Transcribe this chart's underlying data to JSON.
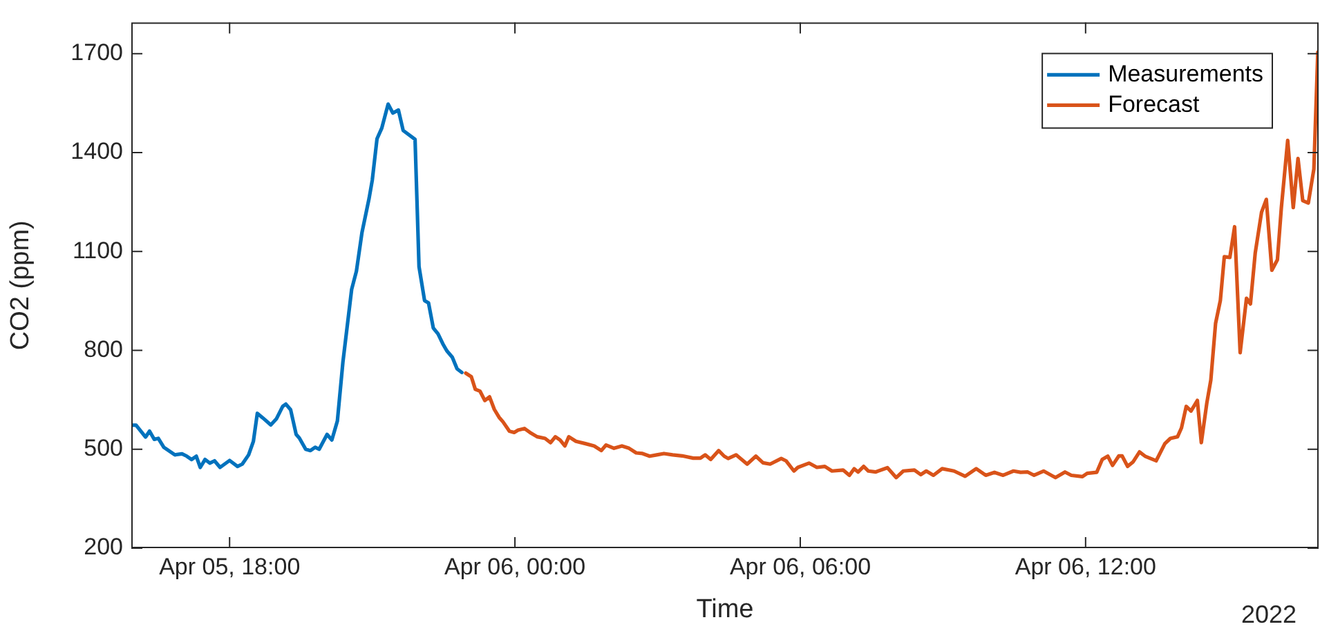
{
  "chart_data": {
    "type": "line",
    "xlabel": "Time",
    "ylabel": "CO2 (ppm)",
    "annotations": [
      "2022"
    ],
    "legend": "top right",
    "marker": "none",
    "line_style": "solid",
    "xlim": [
      "2022-04-05T15:56",
      "2022-04-06T16:54"
    ],
    "xticks": [
      {
        "value": "2022-04-05T18:00",
        "label": "Apr 05, 18:00"
      },
      {
        "value": "2022-04-06T00:00",
        "label": "Apr 06, 00:00"
      },
      {
        "value": "2022-04-06T06:00",
        "label": "Apr 06, 06:00"
      },
      {
        "value": "2022-04-06T12:00",
        "label": "Apr 06, 12:00"
      }
    ],
    "ylim": [
      200,
      1795
    ],
    "yticks": [
      200,
      500,
      800,
      1100,
      1400,
      1700
    ],
    "series": [
      {
        "name": "Measurements",
        "color": "#0072bd",
        "x": [
          "2022-04-05T15:56",
          "2022-04-05T16:02",
          "2022-04-05T16:14",
          "2022-04-05T16:19",
          "2022-04-05T16:25",
          "2022-04-05T16:30",
          "2022-04-05T16:37",
          "2022-04-05T16:51",
          "2022-04-05T17:00",
          "2022-04-05T17:06",
          "2022-04-05T17:12",
          "2022-04-05T17:18",
          "2022-04-05T17:23",
          "2022-04-05T17:29",
          "2022-04-05T17:35",
          "2022-04-05T17:41",
          "2022-04-05T17:48",
          "2022-04-05T18:00",
          "2022-04-05T18:10",
          "2022-04-05T18:16",
          "2022-04-05T18:24",
          "2022-04-05T18:30",
          "2022-04-05T18:35",
          "2022-04-05T18:42",
          "2022-04-05T18:52",
          "2022-04-05T18:59",
          "2022-04-05T19:07",
          "2022-04-05T19:11",
          "2022-04-05T19:17",
          "2022-04-05T19:24",
          "2022-04-05T19:28",
          "2022-04-05T19:36",
          "2022-04-05T19:42",
          "2022-04-05T19:48",
          "2022-04-05T19:53",
          "2022-04-05T20:03",
          "2022-04-05T20:09",
          "2022-04-05T20:16",
          "2022-04-05T20:23",
          "2022-04-05T20:34",
          "2022-04-05T20:40",
          "2022-04-05T20:47",
          "2022-04-05T20:56",
          "2022-04-05T21:00",
          "2022-04-05T21:06",
          "2022-04-05T21:12",
          "2022-04-05T21:20",
          "2022-04-05T21:26",
          "2022-04-05T21:33",
          "2022-04-05T21:39",
          "2022-04-05T21:54",
          "2022-04-05T21:59",
          "2022-04-05T22:06",
          "2022-04-05T22:11",
          "2022-04-05T22:17",
          "2022-04-05T22:23",
          "2022-04-05T22:29",
          "2022-04-05T22:34",
          "2022-04-05T22:41",
          "2022-04-05T22:47",
          "2022-04-05T22:53"
        ],
        "values": [
          573,
          573,
          537,
          555,
          530,
          533,
          506,
          483,
          486,
          479,
          469,
          479,
          445,
          469,
          458,
          465,
          445,
          466,
          448,
          455,
          483,
          524,
          609,
          595,
          574,
          592,
          630,
          637,
          620,
          545,
          534,
          500,
          496,
          506,
          500,
          545,
          528,
          586,
          765,
          985,
          1040,
          1157,
          1261,
          1316,
          1442,
          1474,
          1547,
          1520,
          1529,
          1467,
          1440,
          1054,
          951,
          944,
          868,
          850,
          820,
          799,
          779,
          744,
          733
        ]
      },
      {
        "name": "Forecast",
        "color": "#d95319",
        "x": [
          "2022-04-05T22:58",
          "2022-04-05T23:05",
          "2022-04-05T23:10",
          "2022-04-05T23:16",
          "2022-04-05T23:22",
          "2022-04-05T23:28",
          "2022-04-05T23:34",
          "2022-04-05T23:40",
          "2022-04-05T23:45",
          "2022-04-05T23:53",
          "2022-04-05T23:59",
          "2022-04-06T00:04",
          "2022-04-06T00:12",
          "2022-04-06T00:19",
          "2022-04-06T00:28",
          "2022-04-06T00:38",
          "2022-04-06T00:45",
          "2022-04-06T00:51",
          "2022-04-06T00:57",
          "2022-04-06T01:03",
          "2022-04-06T01:08",
          "2022-04-06T01:17",
          "2022-04-06T01:29",
          "2022-04-06T01:40",
          "2022-04-06T01:49",
          "2022-04-06T01:55",
          "2022-04-06T02:05",
          "2022-04-06T02:15",
          "2022-04-06T02:24",
          "2022-04-06T02:33",
          "2022-04-06T02:41",
          "2022-04-06T02:50",
          "2022-04-06T02:59",
          "2022-04-06T03:08",
          "2022-04-06T03:19",
          "2022-04-06T03:31",
          "2022-04-06T03:45",
          "2022-04-06T03:54",
          "2022-04-06T04:00",
          "2022-04-06T04:07",
          "2022-04-06T04:17",
          "2022-04-06T04:24",
          "2022-04-06T04:29",
          "2022-04-06T04:39",
          "2022-04-06T04:53",
          "2022-04-06T05:04",
          "2022-04-06T05:13",
          "2022-04-06T05:22",
          "2022-04-06T05:36",
          "2022-04-06T05:42",
          "2022-04-06T05:52",
          "2022-04-06T05:57",
          "2022-04-06T06:11",
          "2022-04-06T06:21",
          "2022-04-06T06:31",
          "2022-04-06T06:40",
          "2022-04-06T06:54",
          "2022-04-06T07:02",
          "2022-04-06T07:08",
          "2022-04-06T07:13",
          "2022-04-06T07:20",
          "2022-04-06T07:26",
          "2022-04-06T07:35",
          "2022-04-06T07:50",
          "2022-04-06T08:01",
          "2022-04-06T08:10",
          "2022-04-06T08:24",
          "2022-04-06T08:32",
          "2022-04-06T08:39",
          "2022-04-06T08:48",
          "2022-04-06T08:59",
          "2022-04-06T09:14",
          "2022-04-06T09:28",
          "2022-04-06T09:42",
          "2022-04-06T09:54",
          "2022-04-06T10:05",
          "2022-04-06T10:16",
          "2022-04-06T10:29",
          "2022-04-06T10:38",
          "2022-04-06T10:47",
          "2022-04-06T10:55",
          "2022-04-06T11:07",
          "2022-04-06T11:22",
          "2022-04-06T11:34",
          "2022-04-06T11:42",
          "2022-04-06T11:56",
          "2022-04-06T12:02",
          "2022-04-06T12:14",
          "2022-04-06T12:21",
          "2022-04-06T12:28",
          "2022-04-06T12:34",
          "2022-04-06T12:42",
          "2022-04-06T12:46",
          "2022-04-06T12:53",
          "2022-04-06T13:00",
          "2022-04-06T13:08",
          "2022-04-06T13:15",
          "2022-04-06T13:29",
          "2022-04-06T13:40",
          "2022-04-06T13:47",
          "2022-04-06T13:56",
          "2022-04-06T14:01",
          "2022-04-06T14:07",
          "2022-04-06T14:13",
          "2022-04-06T14:21",
          "2022-04-06T14:26",
          "2022-04-06T14:33",
          "2022-04-06T14:38",
          "2022-04-06T14:44",
          "2022-04-06T14:50",
          "2022-04-06T14:55",
          "2022-04-06T15:02",
          "2022-04-06T15:08",
          "2022-04-06T15:15",
          "2022-04-06T15:23",
          "2022-04-06T15:28",
          "2022-04-06T15:34",
          "2022-04-06T15:42",
          "2022-04-06T15:48",
          "2022-04-06T15:55",
          "2022-04-06T16:02",
          "2022-04-06T16:07",
          "2022-04-06T16:15",
          "2022-04-06T16:22",
          "2022-04-06T16:28",
          "2022-04-06T16:34",
          "2022-04-06T16:41",
          "2022-04-06T16:48",
          "2022-04-06T16:53"
        ],
        "values": [
          731,
          720,
          682,
          676,
          648,
          659,
          621,
          597,
          583,
          555,
          551,
          558,
          563,
          551,
          538,
          533,
          520,
          538,
          528,
          510,
          538,
          524,
          517,
          510,
          496,
          513,
          503,
          510,
          503,
          489,
          487,
          479,
          483,
          487,
          483,
          480,
          473,
          473,
          483,
          469,
          496,
          479,
          472,
          483,
          455,
          479,
          459,
          455,
          472,
          465,
          434,
          445,
          458,
          445,
          448,
          434,
          437,
          421,
          441,
          431,
          448,
          434,
          431,
          444,
          414,
          434,
          437,
          423,
          434,
          421,
          441,
          434,
          418,
          441,
          421,
          430,
          421,
          434,
          430,
          431,
          421,
          434,
          414,
          431,
          421,
          417,
          427,
          430,
          469,
          479,
          451,
          480,
          480,
          448,
          462,
          492,
          479,
          465,
          517,
          533,
          538,
          565,
          630,
          616,
          648,
          520,
          641,
          710,
          882,
          951,
          1084,
          1082,
          1175,
          793,
          958,
          941,
          1095,
          1219,
          1258,
          1043,
          1075,
          1233,
          1437,
          1233,
          1382,
          1254,
          1247,
          1350,
          1705
        ]
      }
    ]
  }
}
